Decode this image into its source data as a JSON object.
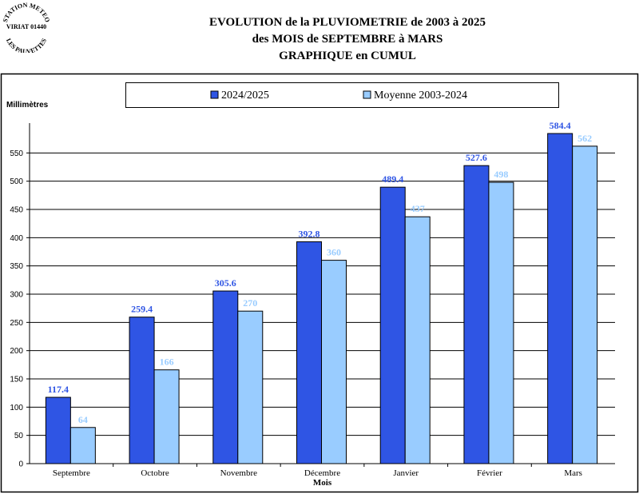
{
  "stamp": {
    "top_arc": "STATION METEO",
    "middle": "VIRIAT 01440",
    "bottom_arc": "LES PAUVETTES"
  },
  "header": {
    "line1": "EVOLUTION de la PLUVIOMETRIE de 2003 à 2025",
    "line2": "des MOIS de SEPTEMBRE à MARS",
    "line3": "GRAPHIQUE en CUMUL"
  },
  "chart_data": {
    "type": "bar",
    "title": "",
    "ylabel": "Millimètres",
    "xlabel": "Mois",
    "categories": [
      "Septembre",
      "Octobre",
      "Novembre",
      "Décembre",
      "Janvier",
      "Février",
      "Mars"
    ],
    "series": [
      {
        "name": "2024/2025",
        "color": "#2f55e4",
        "label_color": "#2f55e4",
        "values": [
          117.4,
          259.4,
          305.6,
          392.8,
          489.4,
          527.6,
          584.4
        ]
      },
      {
        "name": "Moyenne 2003-2024",
        "color": "#99ccff",
        "label_color": "#99ccff",
        "values": [
          64,
          166,
          270,
          360,
          437,
          498,
          562
        ]
      }
    ],
    "ylim": [
      0,
      600
    ],
    "yticks": [
      0,
      50,
      100,
      150,
      200,
      250,
      300,
      350,
      400,
      450,
      500,
      550
    ],
    "grid": true,
    "legend_position": "top-center",
    "plot_background": "#ffffff"
  }
}
